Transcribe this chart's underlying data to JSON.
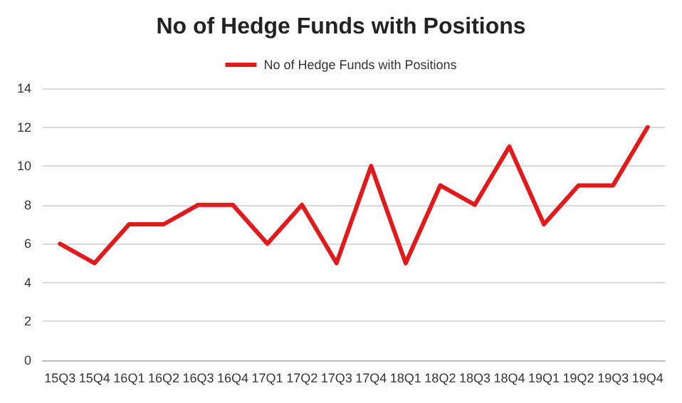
{
  "chart_data": {
    "type": "line",
    "title": "No of Hedge Funds with Positions",
    "categories": [
      "15Q3",
      "15Q4",
      "16Q1",
      "16Q2",
      "16Q3",
      "16Q4",
      "17Q1",
      "17Q2",
      "17Q3",
      "17Q4",
      "18Q1",
      "18Q2",
      "18Q3",
      "18Q4",
      "19Q1",
      "19Q2",
      "19Q3",
      "19Q4"
    ],
    "series": [
      {
        "name": "No of Hedge Funds with Positions",
        "color": "#e31a1c",
        "values": [
          6,
          5,
          7,
          7,
          8,
          8,
          6,
          8,
          5,
          10,
          5,
          9,
          8,
          11,
          7,
          9,
          9,
          12
        ]
      }
    ],
    "ylim": [
      0,
      14
    ],
    "yticks": [
      0,
      2,
      4,
      6,
      8,
      10,
      12,
      14
    ],
    "grid": "y",
    "legend": "top",
    "marker": "none",
    "line_style": "solid"
  }
}
